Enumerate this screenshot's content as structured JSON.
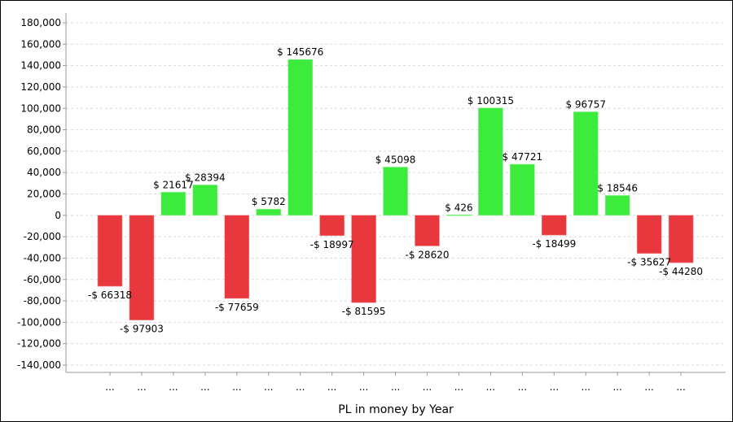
{
  "chart_data": {
    "type": "bar",
    "title": "",
    "xlabel": "PL in money by Year",
    "ylabel": "",
    "ylim": [
      -140000,
      180000
    ],
    "yticks": [
      -140000,
      -120000,
      -100000,
      -80000,
      -60000,
      -40000,
      -20000,
      0,
      20000,
      40000,
      60000,
      80000,
      100000,
      120000,
      140000,
      160000,
      180000
    ],
    "ytick_labels": [
      "-140,000",
      "-120,000",
      "-100,000",
      "-80,000",
      "-60,000",
      "-40,000",
      "-20,000",
      "0",
      "20,000",
      "40,000",
      "60,000",
      "80,000",
      "100,000",
      "120,000",
      "140,000",
      "160,000",
      "180,000"
    ],
    "grid": true,
    "categories": [
      "...",
      "...",
      "...",
      "...",
      "...",
      "...",
      "...",
      "...",
      "...",
      "...",
      "...",
      "...",
      "...",
      "...",
      "...",
      "...",
      "...",
      "...",
      "..."
    ],
    "values": [
      -66318,
      -97903,
      21617,
      28394,
      -77659,
      5782,
      145676,
      -18997,
      -81595,
      45098,
      -28620,
      426,
      100315,
      47721,
      -18499,
      96757,
      18546,
      -35627,
      -44280
    ],
    "data_labels": [
      "-$ 66318",
      "-$ 97903",
      "$ 21617",
      "$ 28394",
      "-$ 77659",
      "$ 5782",
      "$ 145676",
      "-$ 18997",
      "-$ 81595",
      "$ 45098",
      "-$ 28620",
      "$ 426",
      "$ 100315",
      "$ 47721",
      "-$ 18499",
      "$ 96757",
      "$ 18546",
      "-$ 35627",
      "-$ 44280"
    ],
    "colors": {
      "positive": "#3deb3d",
      "negative": "#e8383d",
      "grid": "#d9d9d9",
      "axis": "#999999"
    }
  }
}
